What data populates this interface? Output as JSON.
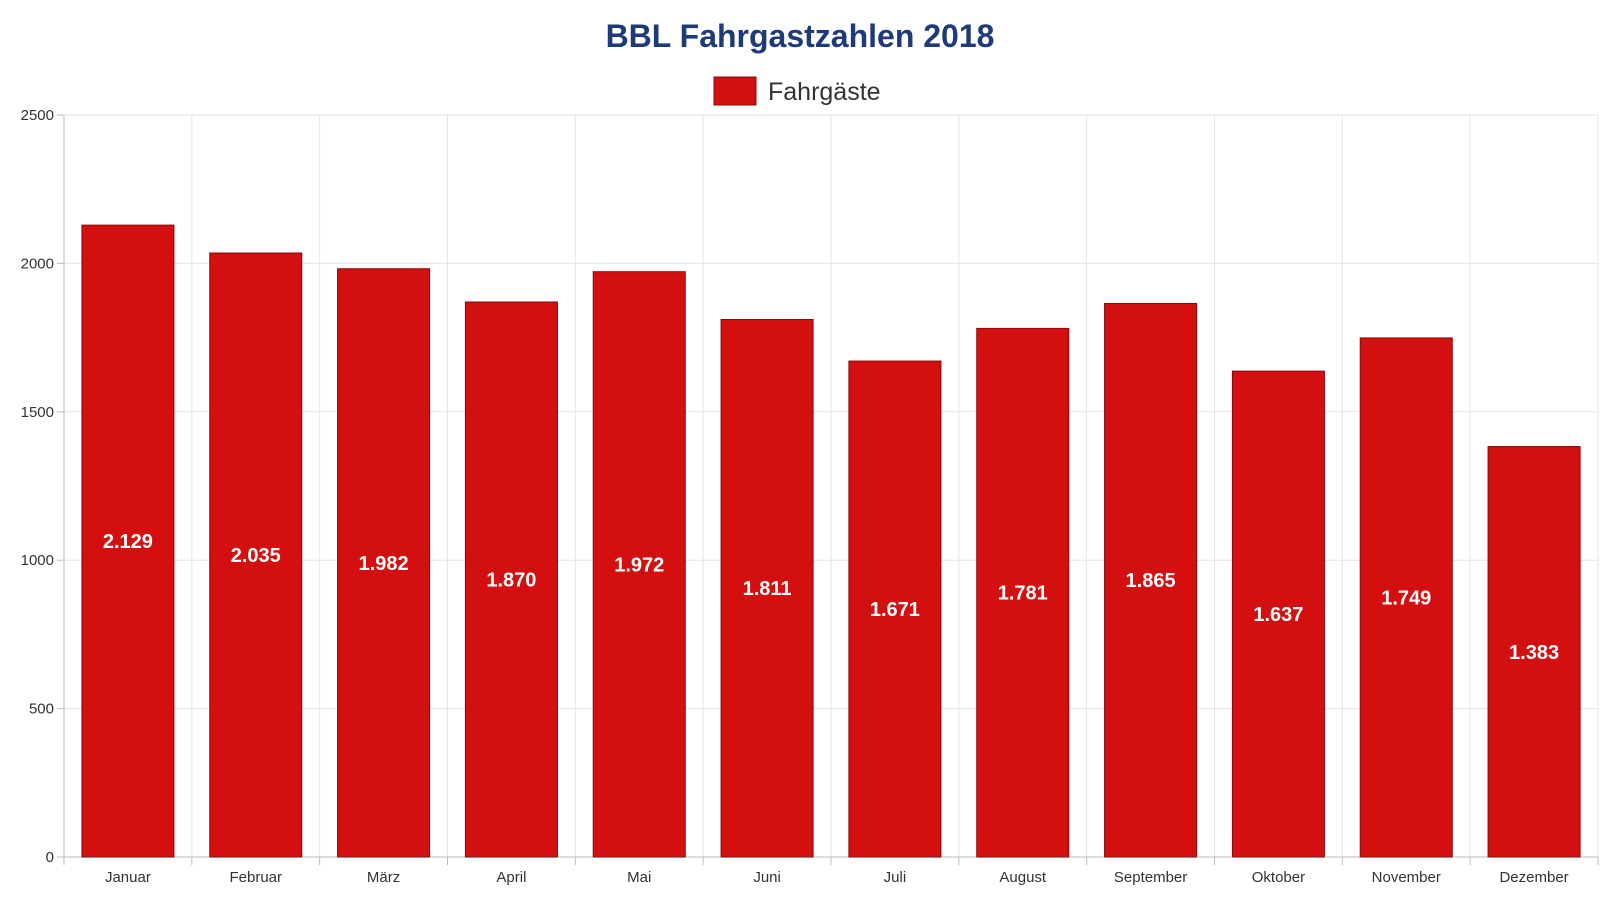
{
  "chart_data": {
    "type": "bar",
    "title": "BBL Fahrgastzahlen 2018",
    "xlabel": "",
    "ylabel": "",
    "categories": [
      "Januar",
      "Februar",
      "März",
      "April",
      "Mai",
      "Juni",
      "Juli",
      "August",
      "September",
      "Oktober",
      "November",
      "Dezember"
    ],
    "series": [
      {
        "name": "Fahrgäste",
        "values": [
          2129,
          2035,
          1982,
          1870,
          1972,
          1811,
          1671,
          1781,
          1865,
          1637,
          1749,
          1383
        ],
        "labels": [
          "2.129",
          "2.035",
          "1.982",
          "1.870",
          "1.972",
          "1.811",
          "1.671",
          "1.781",
          "1.865",
          "1.637",
          "1.749",
          "1.383"
        ],
        "color": "#d40f0f"
      }
    ],
    "ylim": [
      0,
      2500
    ],
    "yticks": [
      0,
      500,
      1000,
      1500,
      2000,
      2500
    ],
    "grid": true,
    "legend_position": "top-center",
    "colors": {
      "title": "#1e3a78",
      "bar": "#d40f0f",
      "bar_border": "#8a0a0a",
      "grid": "#e6e6e6",
      "axis": "#bbbbbb",
      "label": "#ffffff"
    }
  }
}
